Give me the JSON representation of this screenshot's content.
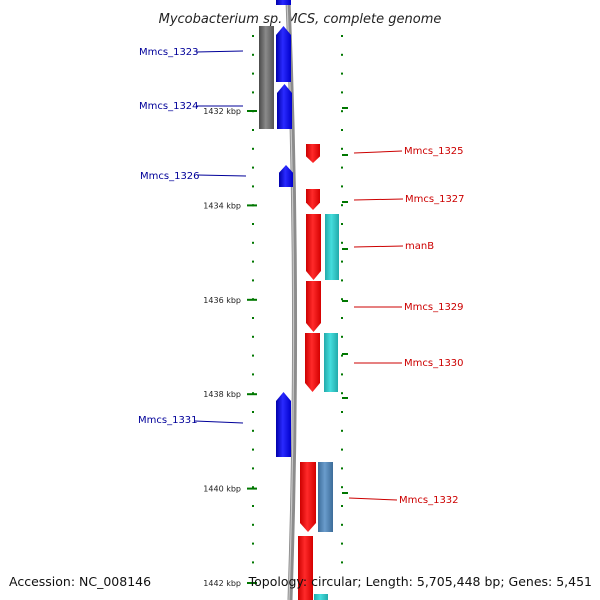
{
  "title": "Mycobacterium sp. MCS, complete genome",
  "footer": {
    "accession": "Accession: NC_008146",
    "summary": "Topology: circular; Length: 5,705,448 bp; Genes: 5,451"
  },
  "colors": {
    "forward_gene": "#0000ee",
    "reverse_gene": "#ee0000",
    "forward_label": "#000099",
    "reverse_label": "#cc0000",
    "cds_feature": "#33cccc",
    "cds_feature_steel": "#4f86b8",
    "gray_feature": "#6b6b6b",
    "tick": "#007700",
    "backbone": "#8c8c8c"
  },
  "scale": {
    "ticks": [
      {
        "label": "1432 kbp",
        "kbp": 1432
      },
      {
        "label": "1434 kbp",
        "kbp": 1434
      },
      {
        "label": "1436 kbp",
        "kbp": 1436
      },
      {
        "label": "1438 kbp",
        "kbp": 1438
      },
      {
        "label": "1440 kbp",
        "kbp": 1440
      },
      {
        "label": "1442 kbp",
        "kbp": 1442
      }
    ]
  },
  "genes": [
    {
      "name": "Mmcs_1323",
      "strand": "forward"
    },
    {
      "name": "Mmcs_1324",
      "strand": "forward"
    },
    {
      "name": "Mmcs_1326",
      "strand": "forward"
    },
    {
      "name": "Mmcs_1331",
      "strand": "forward"
    },
    {
      "name": "Mmcs_1325",
      "strand": "reverse"
    },
    {
      "name": "Mmcs_1327",
      "strand": "reverse"
    },
    {
      "name": "manB",
      "strand": "reverse"
    },
    {
      "name": "Mmcs_1329",
      "strand": "reverse"
    },
    {
      "name": "Mmcs_1330",
      "strand": "reverse"
    },
    {
      "name": "Mmcs_1332",
      "strand": "reverse"
    }
  ]
}
